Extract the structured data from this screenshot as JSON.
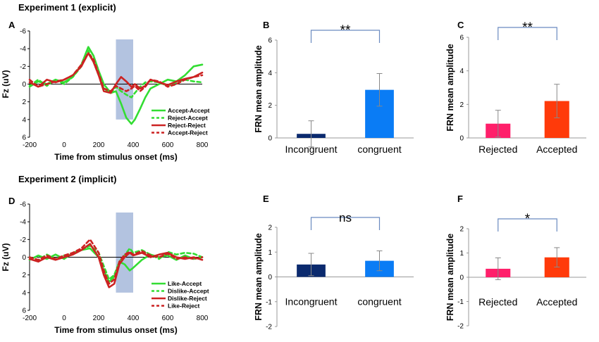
{
  "headings": {
    "exp1": "Experiment 1 (explicit)",
    "exp2": "Experiment 2 (implicit)"
  },
  "chart_data": [
    {
      "panel": "A",
      "type": "line",
      "ylabel": "Fz (uV)",
      "xlabel": "Time from stimulus onset (ms)",
      "xlim": [
        -200,
        800
      ],
      "xticks": [
        -200,
        0,
        200,
        400,
        600,
        800
      ],
      "ylim": [
        -6,
        6
      ],
      "yticks": [
        -6,
        -4,
        -2,
        0,
        2,
        4,
        6
      ],
      "yinverted": true,
      "highlight": [
        300,
        400
      ],
      "highlight_color": "#a6b8da",
      "series": [
        {
          "name": "Accept-Accept",
          "color": "#33dd33",
          "dashed": false,
          "x": [
            -200,
            -150,
            -100,
            -50,
            0,
            50,
            100,
            140,
            170,
            200,
            230,
            270,
            300,
            330,
            360,
            390,
            410,
            440,
            470,
            500,
            550,
            600,
            650,
            700,
            750,
            800
          ],
          "y": [
            0.3,
            -0.3,
            0,
            -0.5,
            -0.2,
            -0.8,
            -2.2,
            -4.2,
            -3.2,
            -1.5,
            0,
            1,
            0.8,
            2.2,
            3.8,
            4.5,
            4,
            2.8,
            1.5,
            0.5,
            0,
            -0.5,
            -0.3,
            -1,
            -2,
            -2.2
          ]
        },
        {
          "name": "Reject-Accept",
          "color": "#33dd33",
          "dashed": true,
          "x": [
            -200,
            -150,
            -100,
            -50,
            0,
            50,
            100,
            140,
            170,
            200,
            230,
            270,
            300,
            330,
            360,
            390,
            410,
            440,
            470,
            500,
            550,
            600,
            650,
            700,
            750,
            800
          ],
          "y": [
            0.2,
            -0.5,
            0.2,
            -0.5,
            0,
            -0.8,
            -2,
            -3.8,
            -2.5,
            -1,
            0.5,
            1,
            0.3,
            0.8,
            1.2,
            1.5,
            1,
            0.3,
            -0.2,
            -0.3,
            -0.2,
            0.2,
            -0.2,
            -0.5,
            -0.3,
            -0.2
          ]
        },
        {
          "name": "Reject-Reject",
          "color": "#cc2222",
          "dashed": false,
          "x": [
            -200,
            -150,
            -100,
            -50,
            0,
            50,
            100,
            140,
            170,
            200,
            230,
            270,
            300,
            330,
            360,
            390,
            410,
            440,
            470,
            500,
            550,
            600,
            650,
            700,
            750,
            800
          ],
          "y": [
            -0.2,
            0.3,
            -0.5,
            -0.2,
            -0.5,
            -1,
            -2,
            -3.5,
            -2.5,
            -1,
            0.8,
            1,
            0,
            -0.8,
            -0.3,
            0.3,
            0,
            0.5,
            0.2,
            -0.5,
            -0.2,
            0.1,
            -0.3,
            -0.6,
            -0.8,
            -1.3
          ]
        },
        {
          "name": "Accept-Reject",
          "color": "#cc2222",
          "dashed": true,
          "x": [
            -200,
            -150,
            -100,
            -50,
            0,
            50,
            100,
            140,
            170,
            200,
            230,
            270,
            300,
            330,
            360,
            390,
            410,
            440,
            470,
            500,
            550,
            600,
            650,
            700,
            750,
            800
          ],
          "y": [
            -0.5,
            0.3,
            0,
            -0.3,
            -0.5,
            -1,
            -2.2,
            -3.5,
            -2.8,
            -1.2,
            0.5,
            0.8,
            0.2,
            0.5,
            0.8,
            0.5,
            0.2,
            0.8,
            0.3,
            -0.5,
            -0.3,
            0.3,
            0,
            -0.5,
            -0.8,
            -1
          ]
        }
      ]
    },
    {
      "panel": "B",
      "type": "bar",
      "ylabel": "FRN mean  amplitude",
      "ylim": [
        0,
        6
      ],
      "yticks": [
        0,
        2,
        4,
        6
      ],
      "categories": [
        "Incongruent",
        "congruent"
      ],
      "values": [
        0.25,
        2.95
      ],
      "errors": [
        0.8,
        1.0
      ],
      "colors": [
        "#0b2a6e",
        "#0a7cf5"
      ],
      "significance": "**"
    },
    {
      "panel": "C",
      "type": "bar",
      "ylabel": "FRN mean  amplitude",
      "ylim": [
        0,
        6
      ],
      "yticks": [
        0,
        2,
        4,
        6
      ],
      "categories": [
        "Rejected",
        "Accepted"
      ],
      "values": [
        0.85,
        2.2
      ],
      "errors": [
        0.8,
        1.0
      ],
      "colors": [
        "#ff1f6a",
        "#ff3a0a"
      ],
      "significance": "**"
    },
    {
      "panel": "D",
      "type": "line",
      "ylabel": "Fz (uV)",
      "xlabel": "Time from stimulus onset (ms)",
      "xlim": [
        -200,
        800
      ],
      "xticks": [
        -200,
        0,
        200,
        400,
        600,
        800
      ],
      "ylim": [
        -6,
        6
      ],
      "yticks": [
        -6,
        -4,
        -2,
        0,
        2,
        4,
        6
      ],
      "yinverted": true,
      "highlight": [
        300,
        400
      ],
      "highlight_color": "#a6b8da",
      "series": [
        {
          "name": "Like-Accept",
          "color": "#33dd33",
          "dashed": false,
          "x": [
            -200,
            -150,
            -100,
            -50,
            0,
            50,
            100,
            150,
            200,
            230,
            260,
            290,
            320,
            350,
            380,
            400,
            450,
            500,
            550,
            600,
            650,
            700,
            750,
            800
          ],
          "y": [
            0.3,
            -0.2,
            0.2,
            -0.3,
            0.2,
            -0.5,
            -0.8,
            -1,
            0,
            1.5,
            2.8,
            2.2,
            0.5,
            0.8,
            1.5,
            1.2,
            0.3,
            -0.3,
            0,
            -0.2,
            0.3,
            -0.2,
            0.2,
            0
          ]
        },
        {
          "name": "Dislike-Accept",
          "color": "#33dd33",
          "dashed": true,
          "x": [
            -200,
            -150,
            -100,
            -50,
            0,
            50,
            100,
            150,
            200,
            230,
            260,
            290,
            320,
            350,
            380,
            400,
            450,
            500,
            550,
            600,
            650,
            700,
            750,
            800
          ],
          "y": [
            0,
            0.3,
            -0.3,
            0.2,
            -0.2,
            -0.3,
            -0.8,
            -1.3,
            -0.5,
            1,
            2.5,
            2,
            0.5,
            -0.2,
            -1,
            -0.5,
            -0.8,
            -0.3,
            0.2,
            -0.6,
            -0.3,
            -0.5,
            -0.4,
            0
          ]
        },
        {
          "name": "Dislike-Reject",
          "color": "#cc2222",
          "dashed": false,
          "x": [
            -200,
            -150,
            -100,
            -50,
            0,
            50,
            100,
            150,
            200,
            230,
            260,
            290,
            320,
            350,
            380,
            400,
            450,
            500,
            550,
            600,
            650,
            700,
            750,
            800
          ],
          "y": [
            0.2,
            0.5,
            0,
            0.3,
            0,
            -0.3,
            -0.8,
            -1.5,
            0,
            2,
            3.4,
            3,
            0.8,
            0,
            -0.5,
            -0.2,
            -0.5,
            0,
            -0.3,
            -0.5,
            0,
            0.2,
            0,
            0.3
          ]
        },
        {
          "name": "Like-Reject",
          "color": "#cc2222",
          "dashed": true,
          "x": [
            -200,
            -150,
            -100,
            -50,
            0,
            50,
            100,
            150,
            200,
            230,
            260,
            290,
            320,
            350,
            380,
            400,
            450,
            500,
            550,
            600,
            650,
            700,
            750,
            800
          ],
          "y": [
            0,
            0.3,
            -0.2,
            0.2,
            -0.2,
            -0.5,
            -1,
            -2,
            -0.5,
            1.5,
            3,
            2.5,
            0.5,
            -0.3,
            -0.6,
            -0.3,
            -0.7,
            -0.2,
            0,
            -0.4,
            0.2,
            0,
            0.2,
            0
          ]
        }
      ]
    },
    {
      "panel": "E",
      "type": "bar",
      "ylabel": "FRN mean  amplitude",
      "ylim": [
        -2,
        2
      ],
      "yticks": [
        -2,
        -1,
        0,
        1,
        2
      ],
      "categories": [
        "Incongruent",
        "congruent"
      ],
      "values": [
        0.5,
        0.65
      ],
      "errors": [
        0.45,
        0.4
      ],
      "colors": [
        "#0b2a6e",
        "#0a7cf5"
      ],
      "significance": "ns"
    },
    {
      "panel": "F",
      "type": "bar",
      "ylabel": "FRN mean  amplitude",
      "ylim": [
        -2,
        2
      ],
      "yticks": [
        -2,
        -1,
        0,
        1,
        2
      ],
      "categories": [
        "Rejected",
        "Accepted"
      ],
      "values": [
        0.35,
        0.82
      ],
      "errors": [
        0.45,
        0.4
      ],
      "colors": [
        "#ff1f6a",
        "#ff3a0a"
      ],
      "significance": "*"
    }
  ]
}
